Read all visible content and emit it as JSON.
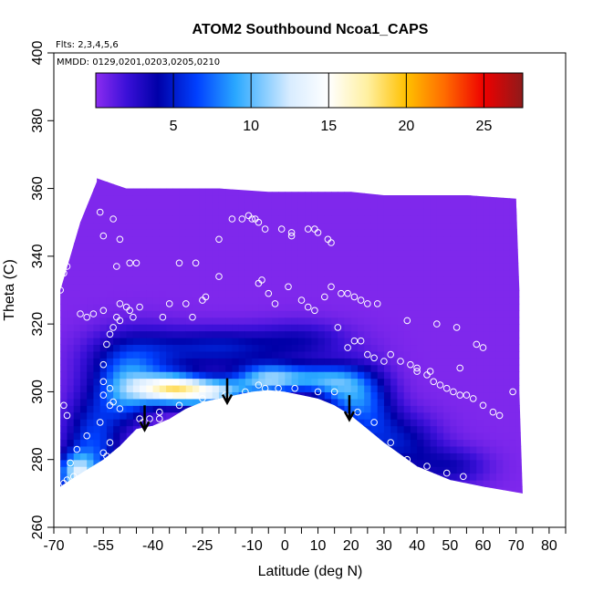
{
  "chart_data": {
    "type": "heatmap",
    "title": "ATOM2 Southbound Ncoa1_CAPS",
    "subtitle_flights": "Flts: 2,3,4,5,6",
    "subtitle_dates": "MMDD: 0129,0201,0203,0205,0210",
    "xlabel": "Latitude (deg N)",
    "ylabel": "Theta (C)",
    "xlim": [
      -70,
      85
    ],
    "ylim": [
      260,
      400
    ],
    "x_ticks": [
      -70,
      -55,
      -40,
      -25,
      -10,
      0,
      10,
      20,
      30,
      40,
      50,
      60,
      70,
      80
    ],
    "x_minor_ticks": [
      -65,
      -60,
      -50,
      -45,
      -35,
      -30,
      -20,
      -15,
      -5,
      5,
      15,
      25,
      35,
      45,
      55,
      65,
      75,
      85
    ],
    "y_ticks": [
      260,
      280,
      300,
      320,
      340,
      360,
      380,
      400
    ],
    "colorbar": {
      "min": 0,
      "max": 27.5,
      "ticks": [
        5,
        10,
        15,
        20,
        25
      ],
      "stops": [
        {
          "v": 0,
          "c": "#8b2cf0"
        },
        {
          "v": 2,
          "c": "#3a10d8"
        },
        {
          "v": 4,
          "c": "#0000a8"
        },
        {
          "v": 6.5,
          "c": "#0040ff"
        },
        {
          "v": 9,
          "c": "#2aa8ff"
        },
        {
          "v": 12.5,
          "c": "#d8ecff"
        },
        {
          "v": 15,
          "c": "#ffffff"
        },
        {
          "v": 17.5,
          "c": "#fff0a0"
        },
        {
          "v": 20,
          "c": "#ffc000"
        },
        {
          "v": 22.5,
          "c": "#ff6a00"
        },
        {
          "v": 25,
          "c": "#ee0000"
        },
        {
          "v": 27.5,
          "c": "#8e1a1a"
        }
      ]
    },
    "data_bounds": {
      "left": [
        [
          -68,
          272
        ],
        [
          -68,
          330
        ],
        [
          -62,
          350
        ],
        [
          -57,
          362
        ]
      ],
      "top": [
        [
          -57,
          363
        ],
        [
          -48,
          360
        ],
        [
          -20,
          360
        ],
        [
          -5,
          359
        ],
        [
          20,
          359
        ],
        [
          30,
          358
        ],
        [
          55,
          358
        ],
        [
          70,
          357
        ]
      ],
      "right": [
        [
          70,
          357
        ],
        [
          71,
          330
        ],
        [
          71,
          300
        ],
        [
          72,
          270
        ]
      ],
      "floor": [
        [
          72,
          270
        ],
        [
          60,
          272
        ],
        [
          50,
          274
        ],
        [
          40,
          278
        ],
        [
          30,
          285
        ],
        [
          20,
          293
        ],
        [
          15,
          296
        ],
        [
          10,
          298
        ],
        [
          5,
          299
        ],
        [
          0,
          300
        ],
        [
          -5,
          300.5
        ],
        [
          -10,
          300
        ],
        [
          -15,
          299
        ],
        [
          -20,
          298
        ],
        [
          -25,
          297
        ],
        [
          -30,
          295
        ],
        [
          -35,
          292
        ],
        [
          -40,
          290
        ],
        [
          -45,
          289
        ],
        [
          -50,
          284
        ],
        [
          -55,
          280
        ],
        [
          -60,
          277
        ],
        [
          -65,
          274
        ],
        [
          -68,
          272
        ]
      ]
    },
    "value_field": {
      "background": 0.3,
      "features": [
        {
          "lat": -35,
          "theta": 301,
          "value": 13.5,
          "sx": 7,
          "sy": 3
        },
        {
          "lat": -22,
          "theta": 300,
          "value": 11,
          "sx": 8,
          "sy": 3
        },
        {
          "lat": -5,
          "theta": 304,
          "value": 9.5,
          "sx": 7,
          "sy": 3
        },
        {
          "lat": -48,
          "theta": 300,
          "value": 7,
          "sx": 6,
          "sy": 6
        },
        {
          "lat": -58,
          "theta": 285,
          "value": 6,
          "sx": 6,
          "sy": 10
        },
        {
          "lat": -45,
          "theta": 310,
          "value": 5,
          "sx": 10,
          "sy": 6
        },
        {
          "lat": 10,
          "theta": 304,
          "value": 6.5,
          "sx": 8,
          "sy": 3
        },
        {
          "lat": 18,
          "theta": 300,
          "value": 5.5,
          "sx": 6,
          "sy": 5
        },
        {
          "lat": -20,
          "theta": 313,
          "value": 4.5,
          "sx": 12,
          "sy": 4
        },
        {
          "lat": 25,
          "theta": 295,
          "value": 5,
          "sx": 6,
          "sy": 8
        },
        {
          "lat": 35,
          "theta": 285,
          "value": 4,
          "sx": 8,
          "sy": 6
        },
        {
          "lat": 50,
          "theta": 278,
          "value": 3,
          "sx": 8,
          "sy": 4
        },
        {
          "lat": -63,
          "theta": 276,
          "value": 10,
          "sx": 4,
          "sy": 4
        },
        {
          "lat": 5,
          "theta": 315,
          "value": 3,
          "sx": 10,
          "sy": 4
        }
      ]
    },
    "observations": [
      [
        -68,
        330
      ],
      [
        -67,
        335
      ],
      [
        -66,
        337
      ],
      [
        -62,
        323
      ],
      [
        -60,
        322
      ],
      [
        -58,
        323
      ],
      [
        -55,
        324
      ],
      [
        -56,
        353
      ],
      [
        -55,
        346
      ],
      [
        -52,
        351
      ],
      [
        -51,
        337
      ],
      [
        -50,
        345
      ],
      [
        -47,
        338
      ],
      [
        -45,
        338
      ],
      [
        -50,
        326
      ],
      [
        -48,
        325
      ],
      [
        -47,
        324
      ],
      [
        -44,
        325
      ],
      [
        -46,
        322
      ],
      [
        -50,
        321
      ],
      [
        -51,
        322
      ],
      [
        -52,
        319
      ],
      [
        -53,
        317
      ],
      [
        -54,
        314
      ],
      [
        -55,
        308
      ],
      [
        -55,
        303
      ],
      [
        -53,
        301
      ],
      [
        -55,
        299
      ],
      [
        -53,
        296
      ],
      [
        -52,
        297
      ],
      [
        -56,
        291
      ],
      [
        -55,
        282
      ],
      [
        -54,
        281
      ],
      [
        -53,
        285
      ],
      [
        -44,
        292
      ],
      [
        -43,
        291
      ],
      [
        -41,
        292
      ],
      [
        -38,
        292
      ],
      [
        -37,
        322
      ],
      [
        -35,
        326
      ],
      [
        -30,
        326
      ],
      [
        -28,
        322
      ],
      [
        -32,
        338
      ],
      [
        -27,
        338
      ],
      [
        -25,
        327
      ],
      [
        -24,
        328
      ],
      [
        -20,
        334
      ],
      [
        -20,
        345
      ],
      [
        -16,
        351
      ],
      [
        -13,
        351
      ],
      [
        -11,
        352
      ],
      [
        -10,
        351
      ],
      [
        -9,
        351
      ],
      [
        -8,
        350
      ],
      [
        -6,
        348
      ],
      [
        -1,
        348
      ],
      [
        2,
        347
      ],
      [
        2,
        346
      ],
      [
        7,
        348
      ],
      [
        9,
        348
      ],
      [
        10,
        347
      ],
      [
        13,
        345
      ],
      [
        14,
        344
      ],
      [
        -8,
        332
      ],
      [
        -7,
        333
      ],
      [
        -5,
        329
      ],
      [
        -3,
        326
      ],
      [
        1,
        331
      ],
      [
        5,
        327
      ],
      [
        7,
        325
      ],
      [
        9,
        324
      ],
      [
        12,
        328
      ],
      [
        14,
        331
      ],
      [
        17,
        329
      ],
      [
        19,
        329
      ],
      [
        21,
        328
      ],
      [
        23,
        327
      ],
      [
        25,
        326
      ],
      [
        28,
        326
      ],
      [
        16,
        319
      ],
      [
        19,
        313
      ],
      [
        21,
        315
      ],
      [
        23,
        315
      ],
      [
        25,
        311
      ],
      [
        27,
        310
      ],
      [
        30,
        309
      ],
      [
        32,
        311
      ],
      [
        35,
        309
      ],
      [
        38,
        308
      ],
      [
        40,
        306
      ],
      [
        43,
        305
      ],
      [
        45,
        303
      ],
      [
        47,
        302
      ],
      [
        49,
        301
      ],
      [
        51,
        300
      ],
      [
        53,
        299
      ],
      [
        55,
        299
      ],
      [
        57,
        298
      ],
      [
        60,
        296
      ],
      [
        63,
        294
      ],
      [
        65,
        293
      ],
      [
        69,
        300
      ],
      [
        46,
        320
      ],
      [
        37,
        321
      ],
      [
        52,
        319
      ],
      [
        58,
        314
      ],
      [
        60,
        313
      ],
      [
        53,
        307
      ],
      [
        44,
        306
      ],
      [
        40,
        307
      ],
      [
        -8,
        302
      ],
      [
        -6,
        301
      ],
      [
        -2,
        301
      ],
      [
        3,
        301
      ],
      [
        10,
        300
      ],
      [
        15,
        300
      ],
      [
        22,
        294
      ],
      [
        27,
        291
      ],
      [
        32,
        285
      ],
      [
        37,
        280
      ],
      [
        43,
        278
      ],
      [
        49,
        276
      ],
      [
        54,
        275
      ],
      [
        -12,
        300
      ],
      [
        -18,
        299
      ],
      [
        -25,
        298
      ],
      [
        -32,
        296
      ],
      [
        -38,
        294
      ],
      [
        -50,
        295
      ],
      [
        -60,
        287
      ],
      [
        -63,
        283
      ],
      [
        -65,
        279
      ],
      [
        -64,
        275
      ],
      [
        -66,
        274
      ],
      [
        -67,
        273
      ],
      [
        -67,
        296
      ],
      [
        -66,
        293
      ]
    ],
    "arrows": [
      {
        "lat": -42.5,
        "theta_from": 296,
        "theta_to": 289
      },
      {
        "lat": -17.5,
        "theta_from": 304,
        "theta_to": 297
      },
      {
        "lat": 19.5,
        "theta_from": 299,
        "theta_to": 292
      }
    ],
    "colors": {
      "frame": "#000000",
      "marker": "#ffffff",
      "arrow": "#000000"
    }
  }
}
